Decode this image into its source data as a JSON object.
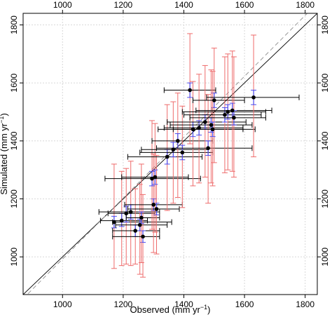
{
  "chart_data": {
    "type": "scatter",
    "xlabel": "Observed (mm yr",
    "ylabel": "Simulated (mm yr",
    "label_unit_exponent": "−1",
    "label_close": ")",
    "xlim": [
      870,
      1840
    ],
    "ylim": [
      870,
      1840
    ],
    "x_ticks": [
      1000,
      1200,
      1400,
      1600,
      1800
    ],
    "y_ticks": [
      1000,
      1200,
      1400,
      1600,
      1800
    ],
    "x_tick_labels": [
      "1000",
      "1200",
      "1400",
      "1600",
      "1800"
    ],
    "y_tick_labels": [
      "1000",
      "1200",
      "1400",
      "1600",
      "1800"
    ],
    "grid": true,
    "lines": [
      {
        "kind": "one-to-one",
        "style": "solid",
        "color": "#000000"
      },
      {
        "kind": "regression",
        "style": "dashed",
        "color": "#999999",
        "x": [
          870,
          1840
        ],
        "y": [
          856,
          1875
        ]
      }
    ],
    "colors": {
      "x_error": "#000000",
      "y_error_outer": "#ee6b6b",
      "y_error_inner": "#4a4aee",
      "point": "#000000"
    },
    "points": [
      {
        "x": 1170,
        "y": 1120,
        "xerr": [
          1165,
          1360
        ],
        "yerr": [
          960,
          1320
        ],
        "yerr_inner": [
          1100,
          1140
        ]
      },
      {
        "x": 1195,
        "y": 1125,
        "xerr": [
          1125,
          1280
        ],
        "yerr": [
          970,
          1295
        ],
        "yerr_inner": [
          1105,
          1150
        ]
      },
      {
        "x": 1210,
        "y": 1150,
        "xerr": [
          1150,
          1305
        ],
        "yerr": [
          975,
          1305
        ],
        "yerr_inner": [
          1120,
          1175
        ]
      },
      {
        "x": 1225,
        "y": 1155,
        "xerr": [
          1120,
          1320
        ],
        "yerr": [
          970,
          1330
        ],
        "yerr_inner": [
          1130,
          1180
        ]
      },
      {
        "x": 1240,
        "y": 1090,
        "xerr": [
          1165,
          1320
        ],
        "yerr": [
          975,
          1235
        ],
        "yerr_inner": [
          1070,
          1110
        ]
      },
      {
        "x": 1255,
        "y": 1110,
        "xerr": [
          1175,
          1345
        ],
        "yerr": [
          940,
          1250
        ],
        "yerr_inner": [
          1090,
          1130
        ]
      },
      {
        "x": 1265,
        "y": 1070,
        "xerr": [
          1165,
          1320
        ],
        "yerr": [
          930,
          1215
        ],
        "yerr_inner": [
          1050,
          1090
        ]
      },
      {
        "x": 1260,
        "y": 1135,
        "xerr": [
          1210,
          1320
        ],
        "yerr": [
          980,
          1320
        ],
        "yerr_inner": [
          1115,
          1155
        ]
      },
      {
        "x": 1300,
        "y": 1180,
        "xerr": [
          1205,
          1395
        ],
        "yerr": [
          1015,
          1355
        ],
        "yerr_inner": [
          1160,
          1200
        ]
      },
      {
        "x": 1310,
        "y": 1165,
        "xerr": [
          1215,
          1385
        ],
        "yerr": [
          1010,
          1350
        ],
        "yerr_inner": [
          1145,
          1185
        ]
      },
      {
        "x": 1295,
        "y": 1270,
        "xerr": [
          1140,
          1455
        ],
        "yerr": [
          1095,
          1470
        ],
        "yerr_inner": [
          1245,
          1295
        ]
      },
      {
        "x": 1305,
        "y": 1275,
        "xerr": [
          1195,
          1415
        ],
        "yerr": [
          1085,
          1460
        ],
        "yerr_inner": [
          1250,
          1300
        ]
      },
      {
        "x": 1345,
        "y": 1345,
        "xerr": [
          1215,
          1460
        ],
        "yerr": [
          1160,
          1525
        ],
        "yerr_inner": [
          1320,
          1370
        ]
      },
      {
        "x": 1365,
        "y": 1370,
        "xerr": [
          1260,
          1480
        ],
        "yerr": [
          1185,
          1535
        ],
        "yerr_inner": [
          1345,
          1395
        ]
      },
      {
        "x": 1380,
        "y": 1400,
        "xerr": [
          1295,
          1495
        ],
        "yerr": [
          1205,
          1565
        ],
        "yerr_inner": [
          1375,
          1425
        ]
      },
      {
        "x": 1395,
        "y": 1360,
        "xerr": [
          1255,
          1495
        ],
        "yerr": [
          1170,
          1520
        ],
        "yerr_inner": [
          1335,
          1385
        ]
      },
      {
        "x": 1430,
        "y": 1440,
        "xerr": [
          1315,
          1595
        ],
        "yerr": [
          1245,
          1605
        ],
        "yerr_inner": [
          1415,
          1465
        ]
      },
      {
        "x": 1420,
        "y": 1575,
        "xerr": [
          1335,
          1505
        ],
        "yerr": [
          1390,
          1770
        ],
        "yerr_inner": [
          1550,
          1600
        ]
      },
      {
        "x": 1450,
        "y": 1445,
        "xerr": [
          1335,
          1595
        ],
        "yerr": [
          1255,
          1630
        ],
        "yerr_inner": [
          1420,
          1470
        ]
      },
      {
        "x": 1470,
        "y": 1465,
        "xerr": [
          1345,
          1605
        ],
        "yerr": [
          1275,
          1660
        ],
        "yerr_inner": [
          1440,
          1490
        ]
      },
      {
        "x": 1480,
        "y": 1375,
        "xerr": [
          1310,
          1625
        ],
        "yerr": [
          1185,
          1560
        ],
        "yerr_inner": [
          1350,
          1400
        ]
      },
      {
        "x": 1490,
        "y": 1455,
        "xerr": [
          1355,
          1625
        ],
        "yerr": [
          1255,
          1645
        ],
        "yerr_inner": [
          1430,
          1480
        ]
      },
      {
        "x": 1500,
        "y": 1540,
        "xerr": [
          1430,
          1600
        ],
        "yerr": [
          1325,
          1720
        ],
        "yerr_inner": [
          1515,
          1565
        ]
      },
      {
        "x": 1495,
        "y": 1440,
        "xerr": [
          1365,
          1635
        ],
        "yerr": [
          1245,
          1640
        ],
        "yerr_inner": [
          1415,
          1465
        ]
      },
      {
        "x": 1535,
        "y": 1490,
        "xerr": [
          1400,
          1655
        ],
        "yerr": [
          1290,
          1690
        ],
        "yerr_inner": [
          1465,
          1515
        ]
      },
      {
        "x": 1545,
        "y": 1500,
        "xerr": [
          1395,
          1670
        ],
        "yerr": [
          1300,
          1700
        ],
        "yerr_inner": [
          1475,
          1525
        ]
      },
      {
        "x": 1560,
        "y": 1505,
        "xerr": [
          1440,
          1690
        ],
        "yerr": [
          1295,
          1710
        ],
        "yerr_inner": [
          1480,
          1530
        ]
      },
      {
        "x": 1565,
        "y": 1480,
        "xerr": [
          1420,
          1670
        ],
        "yerr": [
          1275,
          1690
        ],
        "yerr_inner": [
          1455,
          1505
        ]
      },
      {
        "x": 1630,
        "y": 1550,
        "xerr": [
          1475,
          1780
        ],
        "yerr": [
          1345,
          1765
        ],
        "yerr_inner": [
          1525,
          1575
        ]
      }
    ]
  }
}
